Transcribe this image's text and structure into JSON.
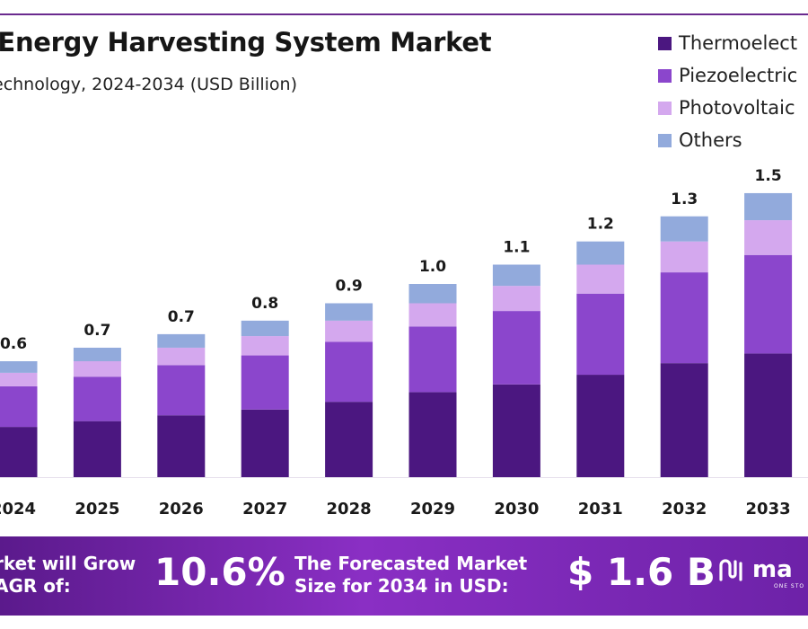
{
  "header": {
    "title": "l Energy Harvesting System Market",
    "subtitle": "echnology, 2024-2034 (USD Billion)"
  },
  "legend": [
    {
      "label": "Thermoelect",
      "color": "#4b1780"
    },
    {
      "label": "Piezoelectric",
      "color": "#8b46cc"
    },
    {
      "label": "Photovoltaic",
      "color": "#d4a8ee"
    },
    {
      "label": "Others",
      "color": "#92aadc"
    }
  ],
  "chart_data": {
    "type": "bar",
    "stacked": true,
    "categories": [
      "2024",
      "2025",
      "2026",
      "2027",
      "2028",
      "2029",
      "2030",
      "2031",
      "2032",
      "2033"
    ],
    "totals_labels": [
      "0.6",
      "0.7",
      "0.7",
      "0.8",
      "0.9",
      "1.0",
      "1.1",
      "1.2",
      "1.3",
      "1.5"
    ],
    "series": [
      {
        "name": "Thermoelect",
        "color": "#4b1780",
        "values": [
          0.26,
          0.29,
          0.32,
          0.35,
          0.39,
          0.44,
          0.48,
          0.53,
          0.59,
          0.64
        ]
      },
      {
        "name": "Piezoelectric",
        "color": "#8b46cc",
        "values": [
          0.21,
          0.23,
          0.26,
          0.28,
          0.31,
          0.34,
          0.38,
          0.42,
          0.47,
          0.51
        ]
      },
      {
        "name": "Photovoltaic",
        "color": "#d4a8ee",
        "values": [
          0.07,
          0.08,
          0.09,
          0.1,
          0.11,
          0.12,
          0.13,
          0.15,
          0.16,
          0.18
        ]
      },
      {
        "name": "Others",
        "color": "#92aadc",
        "values": [
          0.06,
          0.07,
          0.07,
          0.08,
          0.09,
          0.1,
          0.11,
          0.12,
          0.13,
          0.14
        ]
      }
    ],
    "ylim": [
      0,
      1.5
    ],
    "grid": false,
    "legend_position": "top-right"
  },
  "banner": {
    "line1a": "rket will Grow",
    "line1b": "AGR of:",
    "cagr": "10.6%",
    "line2a": "The Forecasted Market",
    "line2b": "Size for 2034 in USD:",
    "size": "$ 1.6 B",
    "logo_text": "ma",
    "logo_sub": "ONE STO"
  }
}
